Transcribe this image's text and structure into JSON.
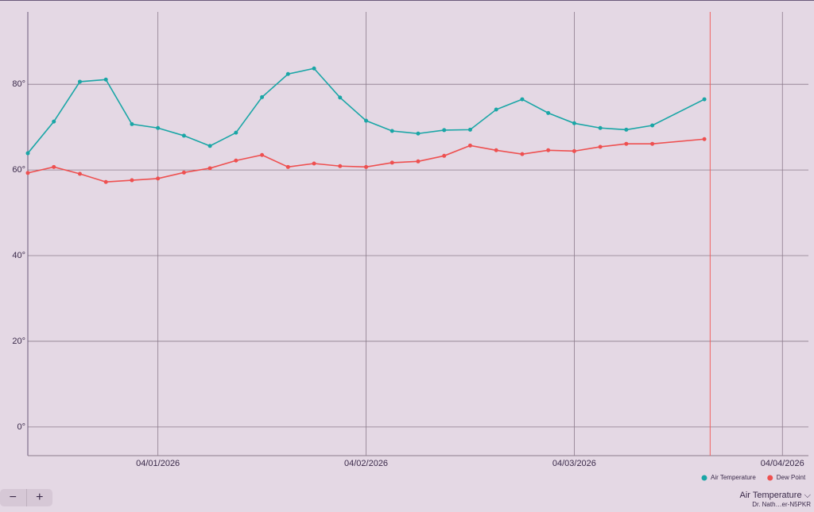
{
  "chart_data": {
    "type": "line",
    "x": [
      "2026-03-31T09:00",
      "2026-03-31T12:00",
      "2026-03-31T15:00",
      "2026-03-31T18:00",
      "2026-03-31T21:00",
      "2026-04-01T00:00",
      "2026-04-01T03:00",
      "2026-04-01T06:00",
      "2026-04-01T09:00",
      "2026-04-01T12:00",
      "2026-04-01T15:00",
      "2026-04-01T18:00",
      "2026-04-01T21:00",
      "2026-04-02T00:00",
      "2026-04-02T03:00",
      "2026-04-02T06:00",
      "2026-04-02T09:00",
      "2026-04-02T12:00",
      "2026-04-02T15:00",
      "2026-04-02T18:00",
      "2026-04-02T21:00",
      "2026-04-03T00:00",
      "2026-04-03T03:00",
      "2026-04-03T06:00",
      "2026-04-03T09:00",
      "2026-04-03T15:00"
    ],
    "series": [
      {
        "name": "Air Temperature",
        "color": "#1aa6a6",
        "values": [
          63.9,
          71.3,
          80.6,
          81.1,
          70.7,
          69.8,
          68.0,
          65.6,
          68.7,
          77.0,
          82.4,
          83.7,
          76.9,
          71.5,
          69.1,
          68.5,
          69.3,
          69.4,
          74.1,
          76.5,
          73.3,
          70.9,
          69.8,
          69.4,
          70.4,
          76.5
        ]
      },
      {
        "name": "Dew Point",
        "color": "#ee5050",
        "values": [
          59.3,
          60.7,
          59.1,
          57.2,
          57.6,
          58.0,
          59.4,
          60.4,
          62.2,
          63.5,
          60.7,
          61.5,
          60.9,
          60.7,
          61.7,
          62.0,
          63.3,
          65.7,
          64.6,
          63.7,
          64.6,
          64.4,
          65.4,
          66.1,
          66.1,
          67.2
        ]
      }
    ],
    "xlim": [
      "2026-03-31T09:00",
      "2026-04-04T03:00"
    ],
    "xticks": [
      {
        "value": "2026-04-01T00:00",
        "label": "04/01/2026"
      },
      {
        "value": "2026-04-02T00:00",
        "label": "04/02/2026"
      },
      {
        "value": "2026-04-03T00:00",
        "label": "04/03/2026"
      },
      {
        "value": "2026-04-04T00:00",
        "label": "04/04/2026"
      }
    ],
    "ylim": [
      -6.7,
      96.9
    ],
    "yticks": [
      {
        "value": 0,
        "label": "0°"
      },
      {
        "value": 20,
        "label": "20°"
      },
      {
        "value": 40,
        "label": "40°"
      },
      {
        "value": 60,
        "label": "60°"
      },
      {
        "value": 80,
        "label": "80°"
      }
    ],
    "now_marker": {
      "value": "2026-04-03T15:40",
      "color": "#f06060"
    },
    "grid": true
  },
  "controls": {
    "zoom_out": "−",
    "zoom_in": "+"
  },
  "station_selector": {
    "metric": "Air Temperature",
    "station": "Dr. Nath…er-N5PKR"
  }
}
